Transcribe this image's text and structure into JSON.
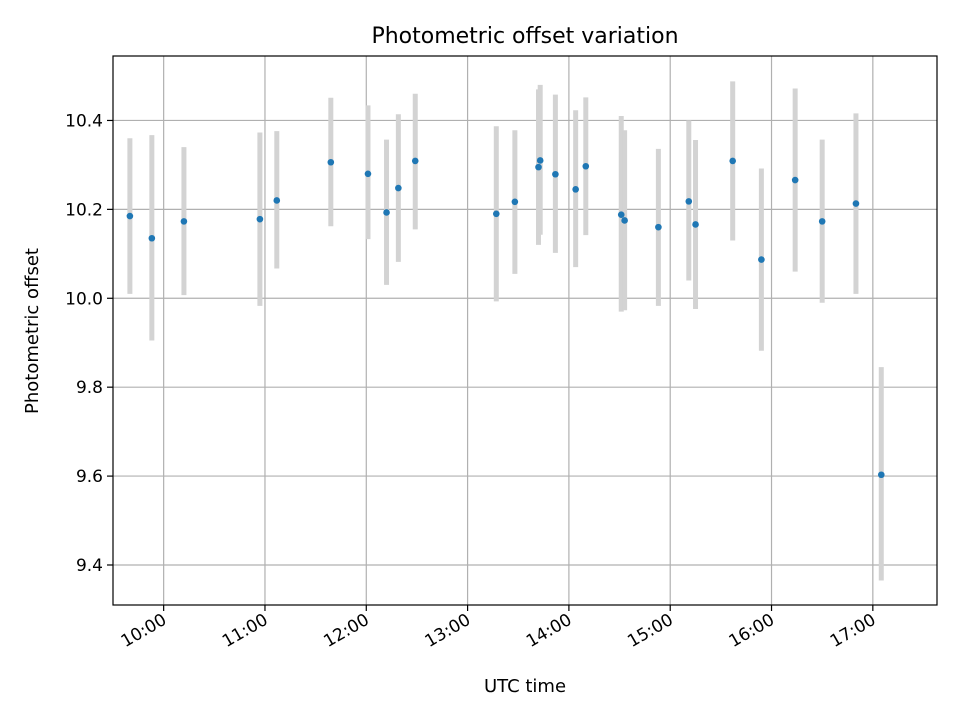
{
  "chart_data": {
    "type": "scatter",
    "title": "Photometric offset variation",
    "xlabel": "UTC time",
    "ylabel": "Photometric offset",
    "xlim": [
      "09:30",
      "17:38"
    ],
    "ylim": [
      9.31,
      10.545
    ],
    "x_ticks": [
      "10:00",
      "11:00",
      "12:00",
      "13:00",
      "14:00",
      "15:00",
      "16:00",
      "17:00"
    ],
    "y_ticks": [
      9.4,
      9.6,
      9.8,
      10.0,
      10.2,
      10.4
    ],
    "grid": true,
    "colors": {
      "marker": "#1f77b4",
      "errorbar": "#d3d3d3",
      "grid": "#b0b0b0"
    },
    "points": [
      {
        "x": "09:40",
        "y": 10.185,
        "lo": 10.01,
        "hi": 10.36
      },
      {
        "x": "09:53",
        "y": 10.135,
        "lo": 9.905,
        "hi": 10.367
      },
      {
        "x": "10:12",
        "y": 10.173,
        "lo": 10.007,
        "hi": 10.34
      },
      {
        "x": "10:57",
        "y": 10.178,
        "lo": 9.983,
        "hi": 10.373
      },
      {
        "x": "11:07",
        "y": 10.22,
        "lo": 10.067,
        "hi": 10.376
      },
      {
        "x": "11:39",
        "y": 10.306,
        "lo": 10.162,
        "hi": 10.451
      },
      {
        "x": "12:01",
        "y": 10.28,
        "lo": 10.133,
        "hi": 10.434
      },
      {
        "x": "12:12",
        "y": 10.193,
        "lo": 10.03,
        "hi": 10.357
      },
      {
        "x": "12:19",
        "y": 10.248,
        "lo": 10.082,
        "hi": 10.414
      },
      {
        "x": "12:29",
        "y": 10.309,
        "lo": 10.155,
        "hi": 10.46
      },
      {
        "x": "13:17",
        "y": 10.19,
        "lo": 9.993,
        "hi": 10.387
      },
      {
        "x": "13:28",
        "y": 10.217,
        "lo": 10.055,
        "hi": 10.378
      },
      {
        "x": "13:42",
        "y": 10.295,
        "lo": 10.12,
        "hi": 10.47
      },
      {
        "x": "13:43",
        "y": 10.31,
        "lo": 10.143,
        "hi": 10.48
      },
      {
        "x": "13:52",
        "y": 10.279,
        "lo": 10.102,
        "hi": 10.458
      },
      {
        "x": "14:04",
        "y": 10.245,
        "lo": 10.07,
        "hi": 10.423
      },
      {
        "x": "14:10",
        "y": 10.297,
        "lo": 10.142,
        "hi": 10.452
      },
      {
        "x": "14:31",
        "y": 10.188,
        "lo": 9.97,
        "hi": 10.41
      },
      {
        "x": "14:33",
        "y": 10.175,
        "lo": 9.973,
        "hi": 10.378
      },
      {
        "x": "14:53",
        "y": 10.16,
        "lo": 9.983,
        "hi": 10.336
      },
      {
        "x": "15:11",
        "y": 10.218,
        "lo": 10.04,
        "hi": 10.4
      },
      {
        "x": "15:15",
        "y": 10.166,
        "lo": 9.976,
        "hi": 10.356
      },
      {
        "x": "15:37",
        "y": 10.309,
        "lo": 10.13,
        "hi": 10.488
      },
      {
        "x": "15:54",
        "y": 10.087,
        "lo": 9.882,
        "hi": 10.292
      },
      {
        "x": "16:14",
        "y": 10.266,
        "lo": 10.06,
        "hi": 10.472
      },
      {
        "x": "16:30",
        "y": 10.173,
        "lo": 9.99,
        "hi": 10.357
      },
      {
        "x": "16:50",
        "y": 10.213,
        "lo": 10.01,
        "hi": 10.416
      },
      {
        "x": "17:05",
        "y": 9.603,
        "lo": 9.365,
        "hi": 9.845
      }
    ]
  }
}
